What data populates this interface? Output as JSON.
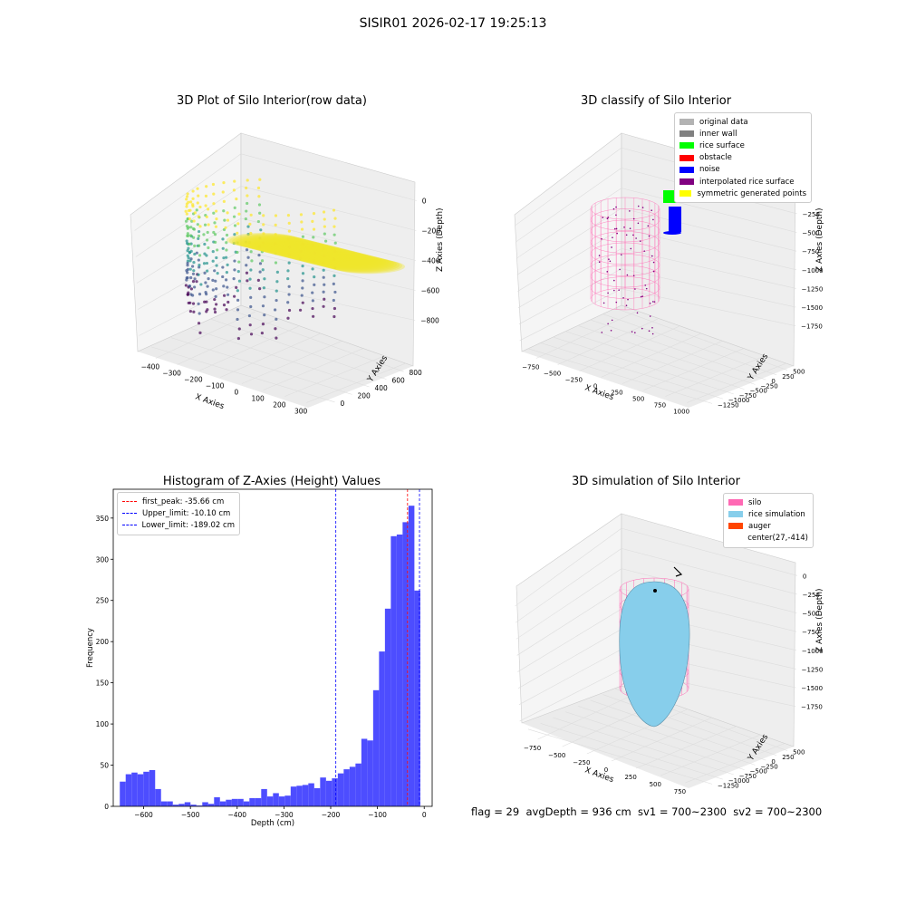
{
  "figure": {
    "suptitle": "SISIR01 2026-02-17 19:25:13"
  },
  "panels": {
    "raw": {
      "title": "3D Plot of Silo Interior(row data)",
      "xlabel": "X Axies",
      "ylabel": "Y Axies",
      "zlabel": "Z Axies (Depth)",
      "xticks": [
        "−400",
        "−300",
        "−200",
        "−100",
        "0",
        "100",
        "200",
        "300"
      ],
      "yticks": [
        "0",
        "200",
        "400",
        "600",
        "800"
      ],
      "zticks": [
        "0",
        "−200",
        "−400",
        "−600",
        "−800"
      ]
    },
    "classify": {
      "title": "3D classify of Silo Interior",
      "xlabel": "X Axies",
      "ylabel": "Y Axies",
      "zlabel": "Z Axies (Depth)",
      "xticks": [
        "−750",
        "−500",
        "−250",
        "0",
        "250",
        "500",
        "750",
        "1000"
      ],
      "yticks": [
        "−1250",
        "−1000",
        "−750",
        "−500",
        "−250",
        "0",
        "250",
        "500"
      ],
      "zticks": [
        "0",
        "−250",
        "−500",
        "−750",
        "−1000",
        "−1250",
        "−1500",
        "−1750"
      ],
      "legend": [
        {
          "label": "original data",
          "color": "#b3b3b3"
        },
        {
          "label": "inner wall",
          "color": "#808080"
        },
        {
          "label": "rice surface",
          "color": "#00ff00"
        },
        {
          "label": "obstacle",
          "color": "#ff0000"
        },
        {
          "label": "noise",
          "color": "#0000ff"
        },
        {
          "label": "interpolated rice surface",
          "color": "#800080"
        },
        {
          "label": "symmetric generated points",
          "color": "#ffff00"
        }
      ]
    },
    "simulation": {
      "title": "3D simulation of Silo Interior",
      "xlabel": "X Axies",
      "ylabel": "Y Axies",
      "zlabel": "Z Axies (Depth)",
      "xticks": [
        "−750",
        "−500",
        "−250",
        "0",
        "250",
        "500",
        "750"
      ],
      "yticks": [
        "−1250",
        "−1000",
        "−750",
        "−500",
        "−250",
        "0",
        "250",
        "500"
      ],
      "zticks": [
        "0",
        "−250",
        "−500",
        "−750",
        "−1000",
        "−1250",
        "−1500",
        "−1750"
      ],
      "legend": [
        {
          "label": "silo",
          "color": "#ff69b4"
        },
        {
          "label": "rice simulation",
          "color": "#87ceeb"
        },
        {
          "label": "auger",
          "color": "#ff4500"
        },
        {
          "label": "center(27,-414)",
          "color": "#ffffff"
        }
      ]
    }
  },
  "footer": {
    "text": "flag = 29  avgDepth = 936 cm  sv1 = 700~2300  sv2 = 700~2300"
  },
  "chart_data": {
    "type": "bar",
    "title": "Histogram of Z-Axies (Height) Values",
    "xlabel": "Depth (cm)",
    "ylabel": "Frequency",
    "xlim": [
      -665,
      17
    ],
    "ylim": [
      0,
      385
    ],
    "xticks": [
      -600,
      -500,
      -400,
      -300,
      -200,
      -100,
      0
    ],
    "yticks": [
      0,
      50,
      100,
      150,
      200,
      250,
      300,
      350
    ],
    "bin_start": -651,
    "bin_width": 12.6,
    "values": [
      30,
      39,
      41,
      39,
      42,
      44,
      21,
      6,
      6,
      2,
      3,
      5,
      2,
      1,
      5,
      3,
      11,
      6,
      8,
      9,
      9,
      6,
      10,
      10,
      21,
      12,
      16,
      12,
      13,
      24,
      25,
      26,
      28,
      22,
      35,
      31,
      34,
      40,
      45,
      48,
      52,
      82,
      80,
      141,
      188,
      240,
      328,
      330,
      345,
      365,
      262
    ],
    "vlines": [
      {
        "label": "first_peak: -35.66 cm",
        "x": -35.66,
        "color": "#ff0000"
      },
      {
        "label": "Upper_limit: -10.10 cm",
        "x": -10.1,
        "color": "#0000ff"
      },
      {
        "label": "Lower_limit: -189.02 cm",
        "x": -189.02,
        "color": "#0000ff"
      }
    ],
    "bar_color": "#4d4dff"
  }
}
